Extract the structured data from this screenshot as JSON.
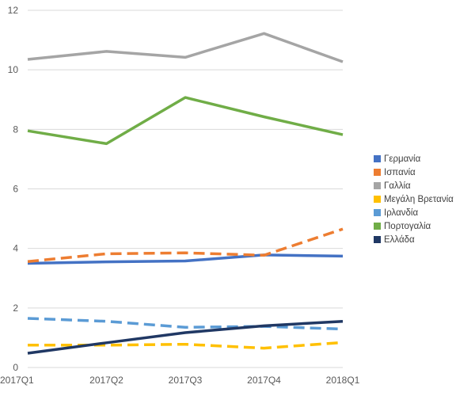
{
  "chart_data": {
    "type": "line",
    "title": "",
    "xlabel": "",
    "ylabel": "",
    "categories": [
      "2017Q1",
      "2017Q2",
      "2017Q3",
      "2017Q4",
      "2018Q1"
    ],
    "ylim": [
      0,
      12
    ],
    "yticks": [
      0,
      2,
      4,
      6,
      8,
      10,
      12
    ],
    "grid": true,
    "legend_position": "right",
    "series": [
      {
        "name": "Γερμανία",
        "values": [
          3.5,
          3.55,
          3.58,
          3.78,
          3.74
        ],
        "color": "#4472C4",
        "dash": "solid"
      },
      {
        "name": "Ισπανία",
        "values": [
          3.56,
          3.82,
          3.85,
          3.77,
          4.65
        ],
        "color": "#ED7D31",
        "dash": "dashed"
      },
      {
        "name": "Γαλλία",
        "values": [
          10.35,
          10.62,
          10.42,
          11.22,
          10.27
        ],
        "color": "#A5A5A5",
        "dash": "solid"
      },
      {
        "name": "Μεγάλη Βρετανία",
        "values": [
          0.75,
          0.75,
          0.78,
          0.65,
          0.84
        ],
        "color": "#FFC000",
        "dash": "dashed"
      },
      {
        "name": "Ιρλανδία",
        "values": [
          1.65,
          1.55,
          1.35,
          1.38,
          1.29
        ],
        "color": "#5B9BD5",
        "dash": "dashed"
      },
      {
        "name": "Πορτογαλία",
        "values": [
          7.95,
          7.52,
          9.07,
          8.42,
          7.82
        ],
        "color": "#70AD47",
        "dash": "solid"
      },
      {
        "name": "Ελλάδα",
        "values": [
          0.48,
          0.83,
          1.17,
          1.4,
          1.55
        ],
        "color": "#203864",
        "dash": "solid"
      }
    ]
  }
}
